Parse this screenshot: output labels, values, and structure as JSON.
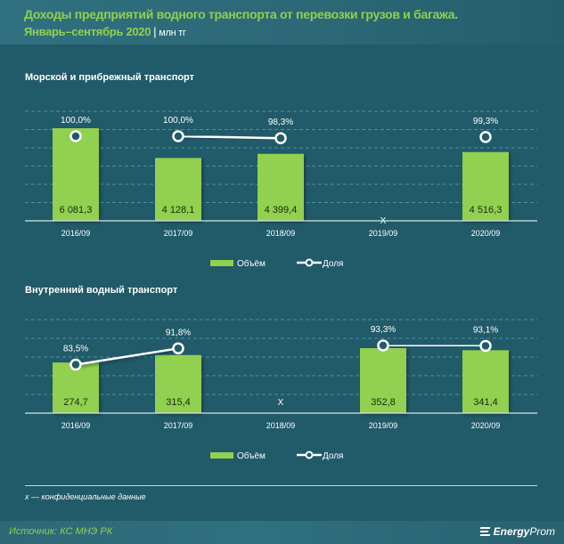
{
  "header": {
    "title": "Доходы предприятий водного транспорта от перевозки грузов и багажа.",
    "subtitle": "Январь–сентябрь 2020",
    "separator": "|",
    "unit": "млн тг"
  },
  "legend": {
    "volume": "Объём",
    "share": "Доля"
  },
  "footnote": "x — конфиденциальные данные",
  "footer": {
    "source": "Источник: КС МНЭ РК",
    "logo_bold": "Energy",
    "logo_light": "Prom"
  },
  "colors": {
    "bar": "#92d050",
    "line": "#ffffff",
    "grid": "#4fa3b6",
    "accent_title": "#8fd14f"
  },
  "chart_data": [
    {
      "type": "bar+line",
      "title": "Морской  и прибрежный  транспорт",
      "categories": [
        "2016/09",
        "2017/09",
        "2018/09",
        "2019/09",
        "2020/09"
      ],
      "series": [
        {
          "name": "Объём",
          "type": "bar",
          "values": [
            6081.3,
            4128.1,
            4399.4,
            null,
            4516.3
          ],
          "labels": [
            "6 081,3",
            "4 128,1",
            "4 399,4",
            "X",
            "4 516,3"
          ]
        },
        {
          "name": "Доля",
          "type": "line",
          "values": [
            100.0,
            100.0,
            98.3,
            null,
            99.3
          ],
          "labels": [
            "100,0%",
            "100,0%",
            "98,3%",
            "",
            "99,3%"
          ]
        }
      ],
      "grid": true,
      "legend_position": "bottom"
    },
    {
      "type": "bar+line",
      "title": "Внутренний  водный транспорт",
      "categories": [
        "2016/09",
        "2017/09",
        "2018/09",
        "2019/09",
        "2020/09"
      ],
      "series": [
        {
          "name": "Объём",
          "type": "bar",
          "values": [
            274.7,
            315.4,
            null,
            352.8,
            341.4
          ],
          "labels": [
            "274,7",
            "315,4",
            "X",
            "352,8",
            "341,4"
          ]
        },
        {
          "name": "Доля",
          "type": "line",
          "values": [
            83.5,
            91.8,
            null,
            93.3,
            93.1
          ],
          "labels": [
            "83,5%",
            "91,8%",
            "",
            "93,3%",
            "93,1%"
          ]
        }
      ],
      "grid": true,
      "legend_position": "bottom"
    }
  ]
}
